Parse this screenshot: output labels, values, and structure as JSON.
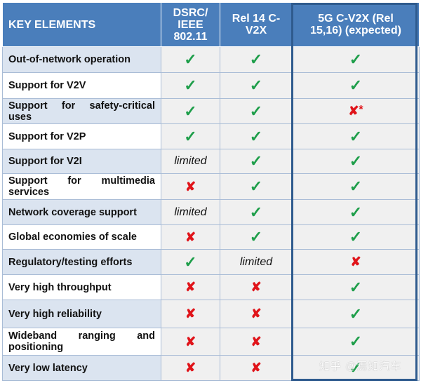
{
  "table": {
    "headers": [
      "KEY ELEMENTS",
      "DSRC/ IEEE 802.11",
      "Rel 14 C-V2X",
      "5G C-V2X (Rel 15,16) (expected)"
    ],
    "rows": [
      {
        "label": "Out-of-network operation",
        "dsrc": "check",
        "rel14": "check",
        "g5": "check"
      },
      {
        "label": "Support for V2V",
        "dsrc": "check",
        "rel14": "check",
        "g5": "check"
      },
      {
        "label": "Support for safety-critical uses",
        "dsrc": "check",
        "rel14": "check",
        "g5": "cross*"
      },
      {
        "label": "Support for V2P",
        "dsrc": "check",
        "rel14": "check",
        "g5": "check"
      },
      {
        "label": "Support for V2I",
        "dsrc": "limited",
        "rel14": "check",
        "g5": "check"
      },
      {
        "label": "Support for multimedia services",
        "dsrc": "cross",
        "rel14": "check",
        "g5": "check"
      },
      {
        "label": "Network coverage support",
        "dsrc": "limited",
        "rel14": "check",
        "g5": "check"
      },
      {
        "label": "Global economies of scale",
        "dsrc": "cross",
        "rel14": "check",
        "g5": "check"
      },
      {
        "label": "Regulatory/testing efforts",
        "dsrc": "check",
        "rel14": "limited",
        "g5": "cross"
      },
      {
        "label": "Very high throughput",
        "dsrc": "cross",
        "rel14": "cross",
        "g5": "check"
      },
      {
        "label": "Very high reliability",
        "dsrc": "cross",
        "rel14": "cross",
        "g5": "check"
      },
      {
        "label": "Wideband ranging and positioning",
        "dsrc": "cross",
        "rel14": "cross",
        "g5": "check"
      },
      {
        "label": "Very low latency",
        "dsrc": "cross",
        "rel14": "cross",
        "g5": "check"
      }
    ]
  },
  "symbols": {
    "check": "✓",
    "cross": "✘",
    "asterisk": "*",
    "limited": "limited"
  },
  "colors": {
    "header_bg": "#4a7ebb",
    "check": "#1e9e4a",
    "cross": "#e0141a",
    "frame": "#2f5b8e"
  },
  "watermark": "知乎 @焉知汽车"
}
